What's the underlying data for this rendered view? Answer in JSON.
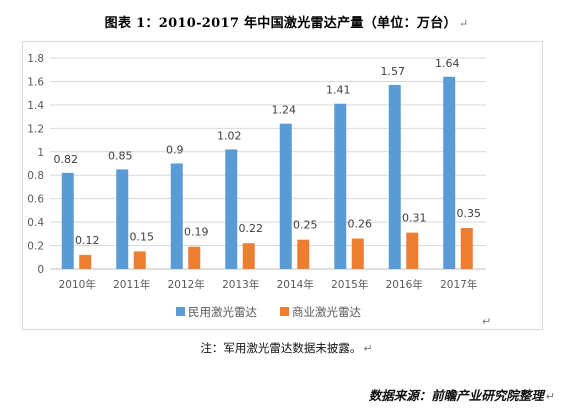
{
  "title": "图表 1：2010-2017 年中国激光雷达产量（单位：万台）",
  "para_mark": "↵",
  "note": "注：军用激光雷达数据未披露。",
  "source": "数据来源：前瞻产业研究院整理",
  "colors": {
    "series1": "#5b9bd5",
    "series2": "#ed7d31",
    "grid": "#d9d9d9",
    "axis": "#bfbfbf",
    "text": "#595959"
  },
  "chart_data": {
    "type": "bar",
    "categories": [
      "2010年",
      "2011年",
      "2012年",
      "2013年",
      "2014年",
      "2015年",
      "2016年",
      "2017年"
    ],
    "series": [
      {
        "name": "民用激光雷达",
        "values": [
          0.82,
          0.85,
          0.9,
          1.02,
          1.24,
          1.41,
          1.57,
          1.64
        ]
      },
      {
        "name": "商业激光雷达",
        "values": [
          0.12,
          0.15,
          0.19,
          0.22,
          0.25,
          0.26,
          0.31,
          0.35
        ]
      }
    ],
    "data_labels": [
      [
        "0.82",
        "0.85",
        "0.9",
        "1.02",
        "1.24",
        "1.41",
        "1.57",
        "1.64"
      ],
      [
        "0.12",
        "0.15",
        "0.19",
        "0.22",
        "0.25",
        "0.26",
        "0.31",
        "0.35"
      ]
    ],
    "ylim": [
      0,
      1.8
    ],
    "yticks": [
      0,
      0.2,
      0.4,
      0.6,
      0.8,
      1,
      1.2,
      1.4,
      1.6,
      1.8
    ],
    "ytick_labels": [
      "0",
      "0.2",
      "0.4",
      "0.6",
      "0.8",
      "1",
      "1.2",
      "1.4",
      "1.6",
      "1.8"
    ],
    "grid": true,
    "legend_position": "bottom"
  }
}
